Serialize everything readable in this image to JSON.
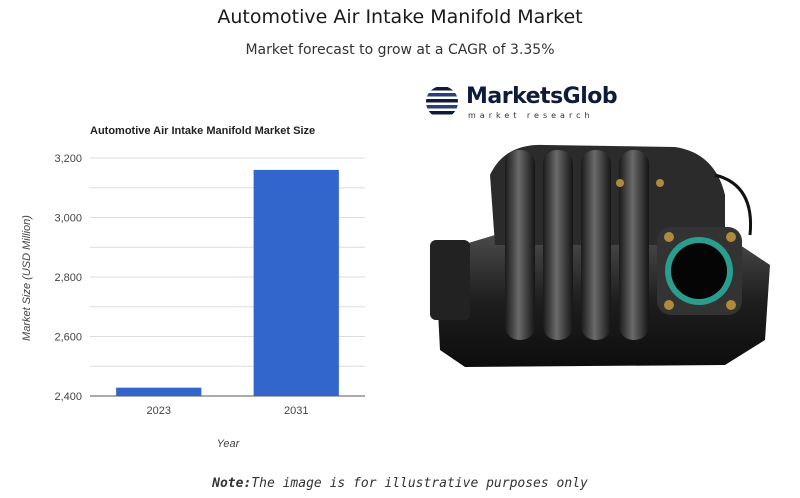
{
  "header": {
    "title": "Automotive Air Intake Manifold Market",
    "subtitle": "Market forecast to grow at a CAGR of 3.35%"
  },
  "logo": {
    "name": "MarketsGlob",
    "tagline": "market research",
    "icon": "globe-icon",
    "color": "#0f1b3a"
  },
  "product_image": {
    "icon": "air-intake-manifold-illustration"
  },
  "note": {
    "label": "Note:",
    "text": "The image is for illustrative purposes only"
  },
  "chart_data": {
    "type": "bar",
    "title": "Automotive Air Intake Manifold Market Size",
    "categories": [
      "2023",
      "2031"
    ],
    "values": [
      2428,
      3160
    ],
    "xlabel": "Year",
    "ylabel": "Market Size (USD Million)",
    "ylim": [
      2400,
      3200
    ],
    "yticks": [
      2400,
      2600,
      2800,
      3000,
      3200
    ],
    "ytick_labels": [
      "2,400",
      "2,600",
      "2,800",
      "3,000",
      "3,200"
    ],
    "bar_color": "#3366cc",
    "grid": true,
    "legend": "none"
  }
}
